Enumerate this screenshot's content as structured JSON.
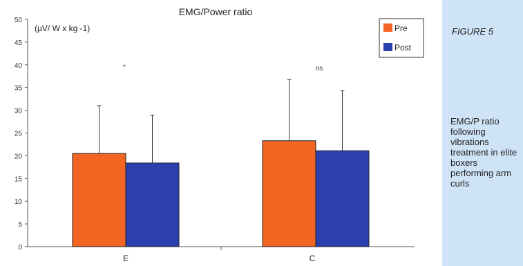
{
  "figure": {
    "label": "FIGURE 5",
    "caption": "EMG/P ratio following vibrations treatment in elite boxers performing arm curls"
  },
  "chart_data": {
    "type": "bar",
    "title": "EMG/Power ratio",
    "ylabel": "(µV/ W x kg -1)",
    "xlabel": "",
    "categories": [
      "E",
      "C"
    ],
    "series": [
      {
        "name": "Pre",
        "color": "#f26522",
        "values": [
          20.5,
          23.3
        ],
        "errors": [
          10.5,
          13.5
        ]
      },
      {
        "name": "Post",
        "color": "#2b3fae",
        "values": [
          18.4,
          21.1
        ],
        "errors": [
          10.5,
          13.2
        ]
      }
    ],
    "ylim": [
      0,
      50
    ],
    "yticks": [
      0,
      5,
      10,
      15,
      20,
      25,
      30,
      35,
      40,
      45,
      50
    ],
    "annotations": [
      "*",
      "ns"
    ],
    "grid": false,
    "legend_position": "top-right"
  }
}
